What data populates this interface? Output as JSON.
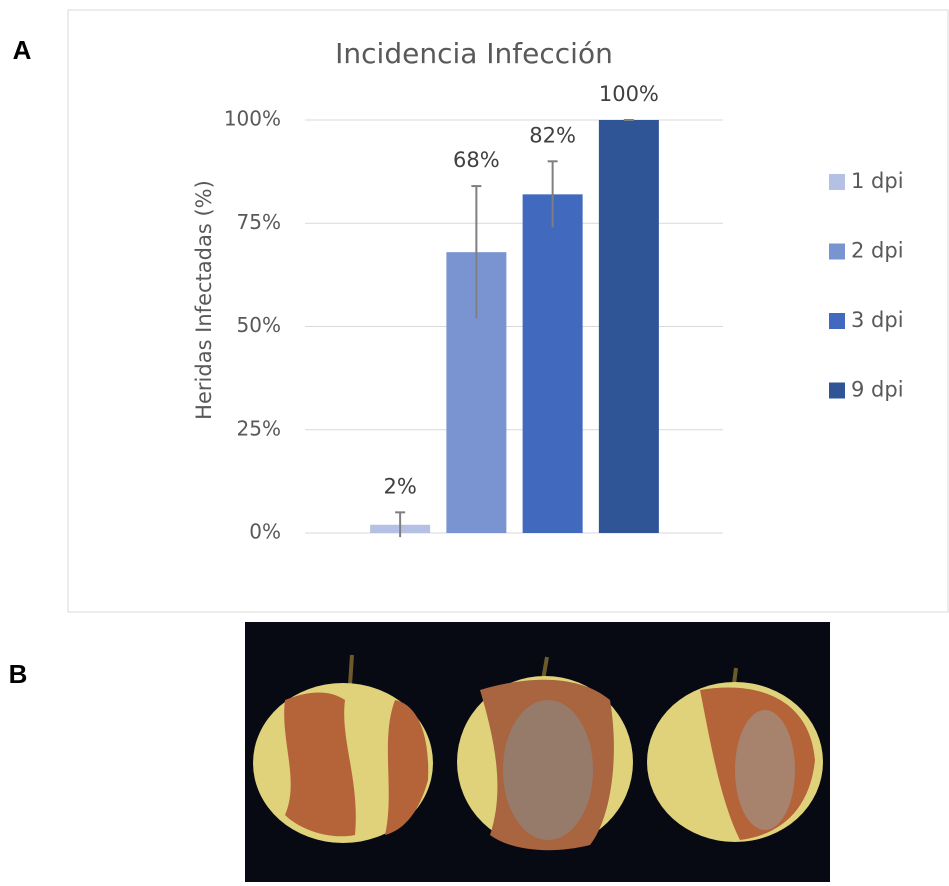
{
  "panels": {
    "a": "A",
    "b": "B"
  },
  "chart_data": {
    "type": "bar",
    "title": "Incidencia Infección",
    "y_label": "Heridas Infectadas (%)",
    "series": [
      {
        "name": "1 dpi",
        "color": "#b4c0e4",
        "values": [
          2
        ],
        "value_labels": [
          "2%"
        ],
        "errors": [
          3
        ]
      },
      {
        "name": "2 dpi",
        "color": "#7a94d2",
        "values": [
          68
        ],
        "value_labels": [
          "68%"
        ],
        "errors": [
          16
        ]
      },
      {
        "name": "3 dpi",
        "color": "#4169be",
        "values": [
          82
        ],
        "value_labels": [
          "82%"
        ],
        "errors": [
          8
        ]
      },
      {
        "name": "9 dpi",
        "color": "#2f5597",
        "values": [
          100
        ],
        "value_labels": [
          "100%"
        ],
        "errors": [
          0
        ]
      }
    ],
    "ylim": [
      0,
      100
    ],
    "yticks": [
      {
        "value": 0,
        "label": "0%"
      },
      {
        "value": 25,
        "label": "25%"
      },
      {
        "value": 50,
        "label": "50%"
      },
      {
        "value": 75,
        "label": "75%"
      },
      {
        "value": 100,
        "label": "100%"
      }
    ],
    "grid": true,
    "legend": "right"
  }
}
